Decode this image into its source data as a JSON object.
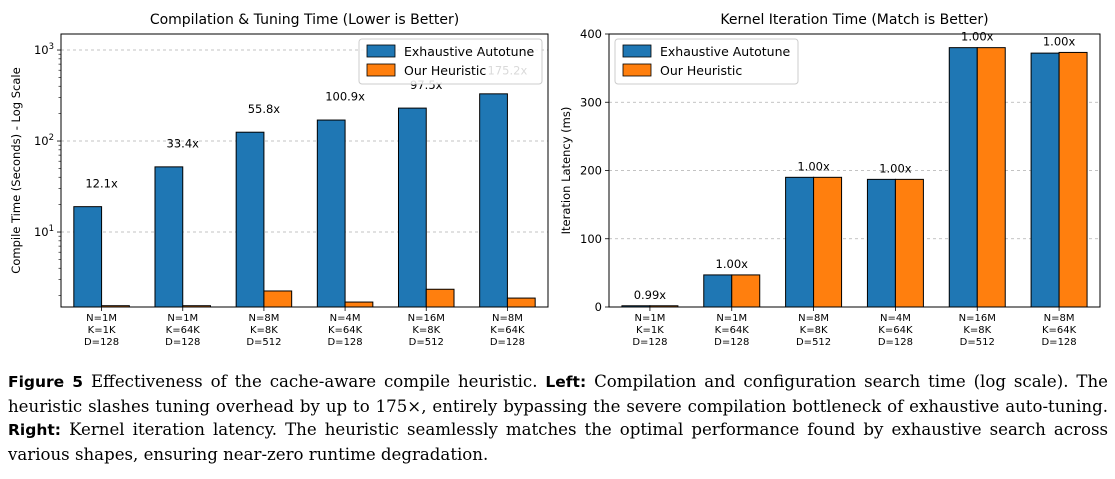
{
  "chart_data": [
    {
      "type": "bar",
      "title": "Compilation & Tuning Time (Lower is Better)",
      "ylabel": "Compile Time (Seconds) - Log Scale",
      "xlabel": "",
      "yscale": "log",
      "ylim": [
        1.5,
        1500
      ],
      "yticks": [
        10,
        100,
        1000
      ],
      "ytick_labels": [
        {
          "base": "10",
          "exp": "1"
        },
        {
          "base": "10",
          "exp": "2"
        },
        {
          "base": "10",
          "exp": "3"
        }
      ],
      "grid": "y-major-dashed",
      "legend_loc": "top-right",
      "categories": [
        [
          "N=1M",
          "K=1K",
          "D=128"
        ],
        [
          "N=1M",
          "K=64K",
          "D=128"
        ],
        [
          "N=8M",
          "K=8K",
          "D=512"
        ],
        [
          "N=4M",
          "K=64K",
          "D=128"
        ],
        [
          "N=16M",
          "K=8K",
          "D=512"
        ],
        [
          "N=8M",
          "K=64K",
          "D=128"
        ]
      ],
      "series": [
        {
          "name": "Exhaustive Autotune",
          "color": "#1f77b4",
          "values": [
            19,
            52,
            125,
            170,
            230,
            330
          ]
        },
        {
          "name": "Our Heuristic",
          "color": "#ff7f0e",
          "values": [
            1.55,
            1.55,
            2.25,
            1.7,
            2.35,
            1.88
          ]
        }
      ],
      "annotations": [
        "12.1x",
        "33.4x",
        "55.8x",
        "100.9x",
        "97.5x",
        "175.2x"
      ]
    },
    {
      "type": "bar",
      "title": "Kernel Iteration Time (Match is Better)",
      "ylabel": "Iteration Latency (ms)",
      "xlabel": "",
      "yscale": "linear",
      "ylim": [
        0,
        400
      ],
      "yticks": [
        0,
        100,
        200,
        300,
        400
      ],
      "grid": "y-major-dashed",
      "legend_loc": "top-left",
      "categories": [
        [
          "N=1M",
          "K=1K",
          "D=128"
        ],
        [
          "N=1M",
          "K=64K",
          "D=128"
        ],
        [
          "N=8M",
          "K=8K",
          "D=512"
        ],
        [
          "N=4M",
          "K=64K",
          "D=128"
        ],
        [
          "N=16M",
          "K=8K",
          "D=512"
        ],
        [
          "N=8M",
          "K=64K",
          "D=128"
        ]
      ],
      "series": [
        {
          "name": "Exhaustive Autotune",
          "color": "#1f77b4",
          "values": [
            1.8,
            47,
            190,
            187,
            380,
            372
          ]
        },
        {
          "name": "Our Heuristic",
          "color": "#ff7f0e",
          "values": [
            1.8,
            47,
            190,
            187,
            380,
            373
          ]
        }
      ],
      "annotations": [
        "0.99x",
        "1.00x",
        "1.00x",
        "1.00x",
        "1.00x",
        "1.00x"
      ]
    }
  ],
  "caption": {
    "label": "Figure 5",
    "lead": "Effectiveness of the cache-aware compile heuristic.",
    "left_label": "Left:",
    "left_text": "Compilation and configuration search time (log scale). The heuristic slashes tuning overhead by up to 175×, entirely bypassing the severe compilation bottleneck of exhaustive auto-tuning.",
    "right_label": "Right:",
    "right_text": "Kernel iteration latency. The heuristic seamlessly matches the optimal performance found by exhaustive search across various shapes, ensuring near-zero runtime degradation."
  }
}
